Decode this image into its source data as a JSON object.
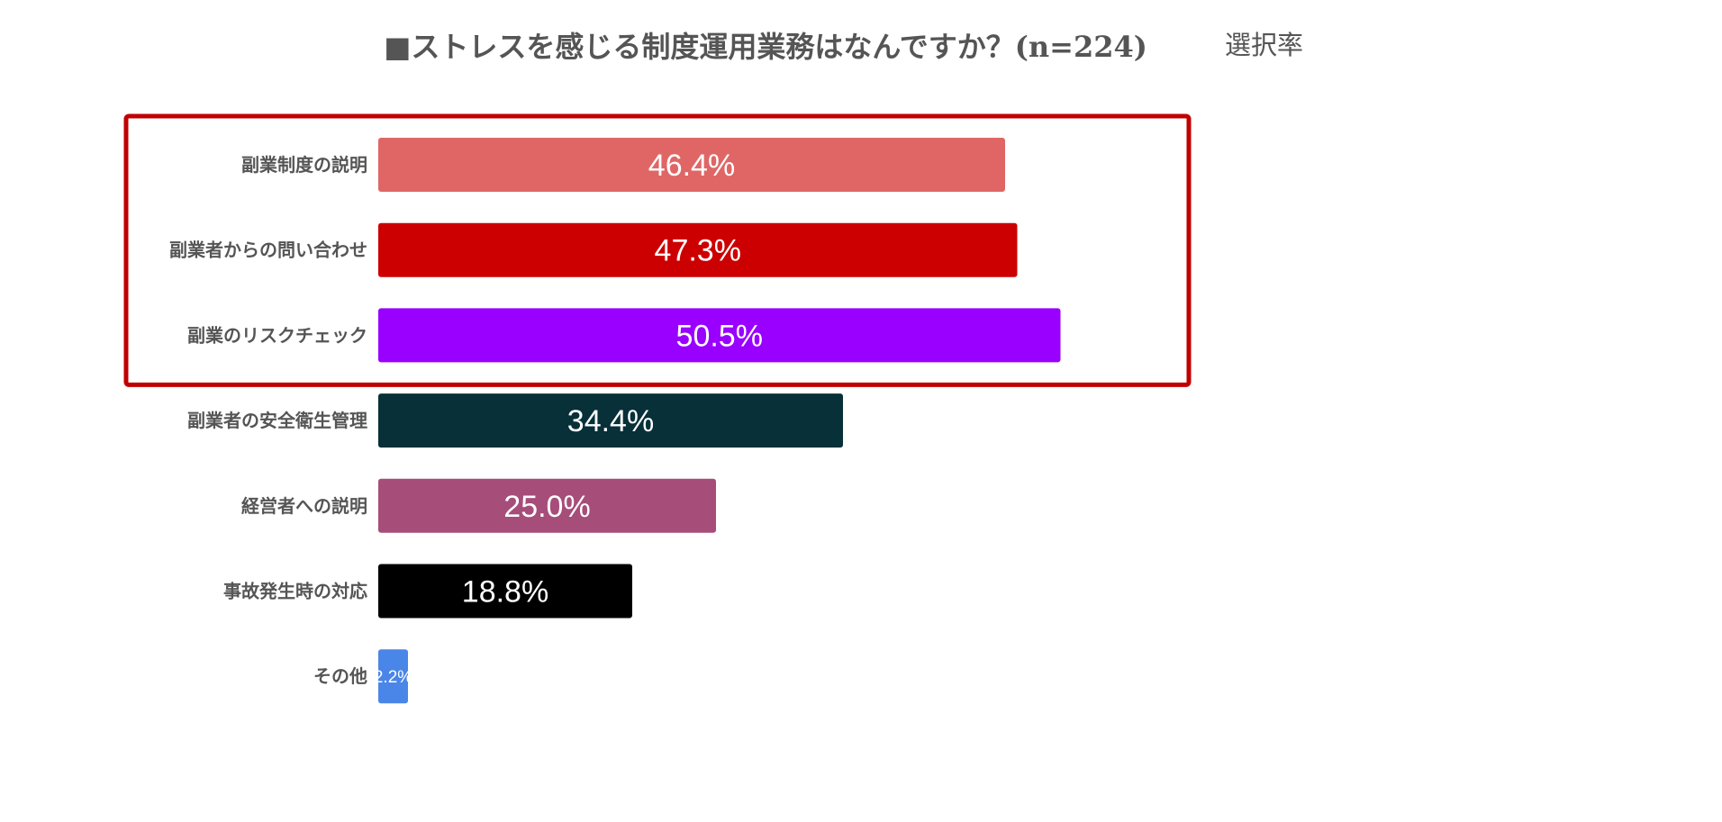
{
  "chart_data": {
    "type": "bar",
    "orientation": "horizontal",
    "title": "■ストレスを感じる制度運用業務はなんですか？(n=224)",
    "subtitle": "選択率",
    "categories": [
      "副業制度の説明",
      "副業者からの問い合わせ",
      "副業のリスクチェック",
      "副業者の安全衛生管理",
      "経営者への説明",
      "事故発生時の対応",
      "その他"
    ],
    "values": [
      46.4,
      47.3,
      50.5,
      34.4,
      25.0,
      18.8,
      2.2
    ],
    "data_labels": [
      "46.4%",
      "47.3%",
      "50.5%",
      "34.4%",
      "25.0%",
      "18.8%",
      "2.2%"
    ],
    "colors": [
      "#e06666",
      "#cc0000",
      "#9900ff",
      "#073039",
      "#a64d79",
      "#000000",
      "#4a86e8"
    ],
    "highlight": {
      "categories": [
        "副業制度の説明",
        "副業者からの問い合わせ",
        "副業のリスクチェック"
      ],
      "color": "#c00000"
    },
    "grid": false
  }
}
